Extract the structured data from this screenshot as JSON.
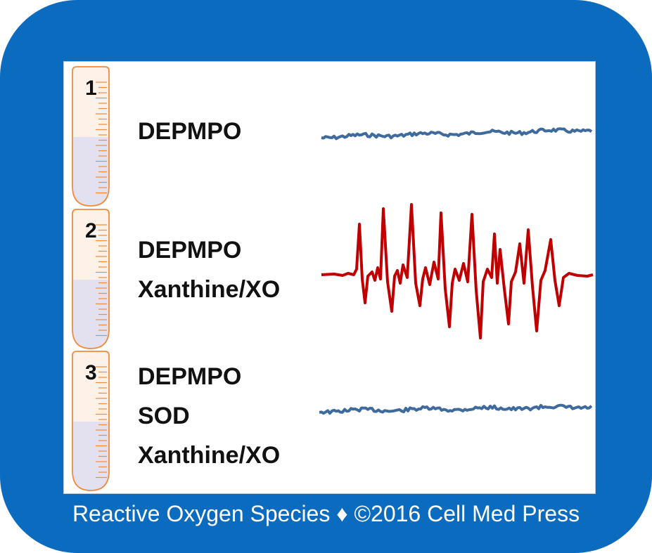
{
  "samples": [
    {
      "number": "1",
      "lines": [
        "DEPMPO"
      ],
      "signal": "flat"
    },
    {
      "number": "2",
      "lines": [
        "DEPMPO",
        "Xanthine/XO"
      ],
      "signal": "spectrum"
    },
    {
      "number": "3",
      "lines": [
        "DEPMPO",
        "SOD",
        "Xanthine/XO"
      ],
      "signal": "flat"
    }
  ],
  "footer": "Reactive Oxygen Species ♦ ©2016 Cell Med Press",
  "colors": {
    "frame": "#0b6cbf",
    "flat_trace": "#3e6a9e",
    "spectrum_trace": "#c00000",
    "tube_outline": "#f08a3c",
    "tube_liquid": "#e3e1ef"
  }
}
